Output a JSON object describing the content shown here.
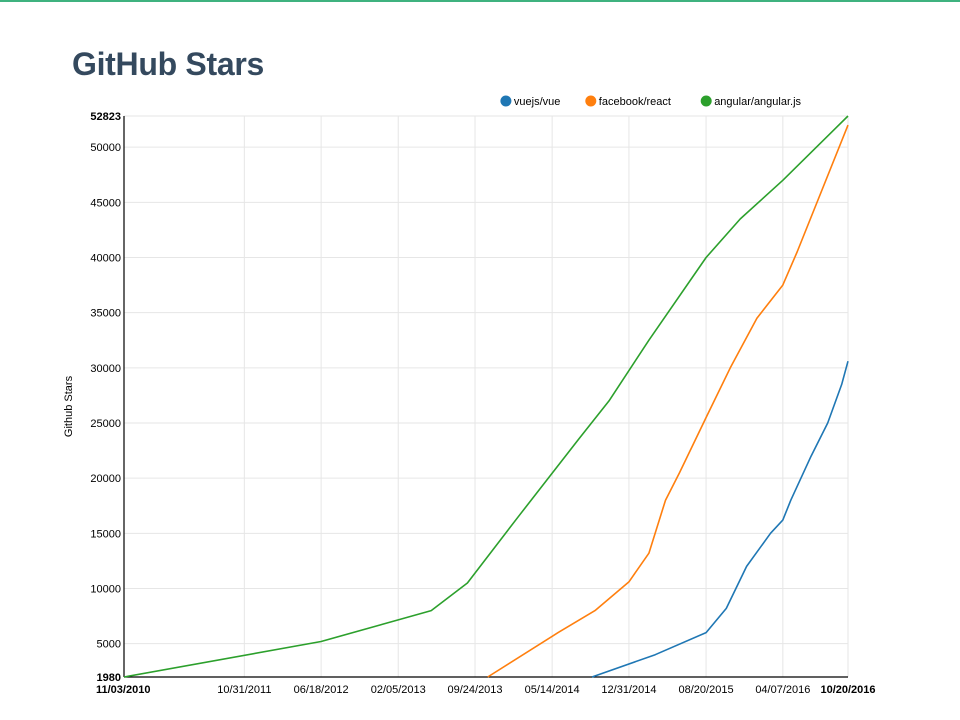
{
  "page": {
    "title": "GitHub Stars"
  },
  "chart_data": {
    "type": "line",
    "title": "",
    "xlabel": "",
    "ylabel": "Github Stars",
    "x_tick_labels": [
      "11/03/2010",
      "10/31/2011",
      "06/18/2012",
      "02/05/2013",
      "09/24/2013",
      "05/14/2014",
      "12/31/2014",
      "08/20/2015",
      "04/07/2016",
      "10/20/2016"
    ],
    "x_tick_bold": [
      "11/03/2010",
      "10/20/2016"
    ],
    "xlim": [
      "11/03/2010",
      "10/20/2016"
    ],
    "y_ticks": [
      1980,
      5000,
      10000,
      15000,
      20000,
      25000,
      30000,
      35000,
      40000,
      45000,
      50000,
      52823
    ],
    "y_tick_bold": [
      1980,
      52823
    ],
    "ylim": [
      1980,
      52823
    ],
    "grid": true,
    "legend_position": "top-right",
    "series": [
      {
        "name": "vuejs/vue",
        "color": "#1f77b4",
        "points": [
          [
            "09/11/2014",
            1980
          ],
          [
            "03/20/2015",
            4000
          ],
          [
            "08/20/2015",
            6000
          ],
          [
            "10/20/2015",
            8200
          ],
          [
            "12/20/2015",
            12000
          ],
          [
            "03/01/2016",
            15000
          ],
          [
            "04/07/2016",
            16200
          ],
          [
            "05/01/2016",
            18000
          ],
          [
            "07/01/2016",
            22000
          ],
          [
            "08/20/2016",
            25000
          ],
          [
            "10/01/2016",
            28500
          ],
          [
            "10/20/2016",
            30600
          ]
        ]
      },
      {
        "name": "facebook/react",
        "color": "#ff7f0e",
        "points": [
          [
            "11/01/2013",
            1980
          ],
          [
            "06/01/2014",
            6000
          ],
          [
            "09/20/2014",
            8000
          ],
          [
            "12/31/2014",
            10600
          ],
          [
            "03/01/2015",
            13200
          ],
          [
            "04/20/2015",
            18000
          ],
          [
            "06/01/2015",
            20500
          ],
          [
            "08/20/2015",
            25500
          ],
          [
            "11/01/2015",
            30000
          ],
          [
            "01/20/2016",
            34500
          ],
          [
            "04/07/2016",
            37500
          ],
          [
            "05/20/2016",
            40500
          ],
          [
            "10/20/2016",
            52000
          ]
        ]
      },
      {
        "name": "angular/angular.js",
        "color": "#2ca02c",
        "points": [
          [
            "11/03/2010",
            1980
          ],
          [
            "06/18/2012",
            5200
          ],
          [
            "05/15/2013",
            8000
          ],
          [
            "09/01/2013",
            10500
          ],
          [
            "02/01/2014",
            16500
          ],
          [
            "08/01/2014",
            23500
          ],
          [
            "11/01/2014",
            27000
          ],
          [
            "03/01/2015",
            32500
          ],
          [
            "08/20/2015",
            40000
          ],
          [
            "12/01/2015",
            43500
          ],
          [
            "04/07/2016",
            47000
          ],
          [
            "10/20/2016",
            52823
          ]
        ]
      }
    ]
  }
}
